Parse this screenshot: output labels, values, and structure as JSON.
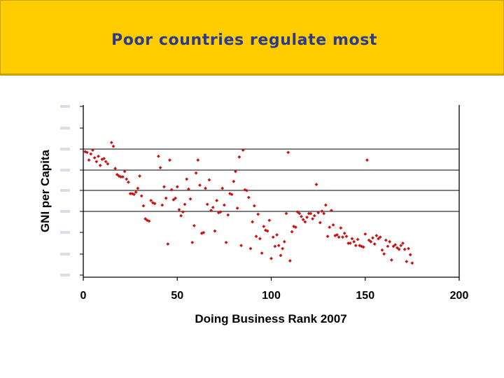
{
  "slide": {
    "title": "Poor countries regulate most"
  },
  "colors": {
    "header_bg": "#ffcc00",
    "title_text": "#2b3a8c",
    "points": "#cc1111"
  },
  "chart_data": {
    "type": "scatter",
    "title": "",
    "xlabel": "Doing Business Rank 2007",
    "ylabel": "GNI per Capita",
    "xlim": [
      0,
      200
    ],
    "x_ticks": [
      "0",
      "50",
      "100",
      "150",
      "200"
    ],
    "y_scale": "log",
    "y_ticks_legible": false,
    "grid": "horizontal lines at four y ticks",
    "legend": "none",
    "series": [
      {
        "points": [
          [
            1,
            52
          ],
          [
            2,
            53
          ],
          [
            3,
            63
          ],
          [
            4,
            55
          ],
          [
            5,
            50
          ],
          [
            6,
            60
          ],
          [
            7,
            65
          ],
          [
            8,
            58
          ],
          [
            9,
            70
          ],
          [
            10,
            62
          ],
          [
            11,
            61
          ],
          [
            12,
            65
          ],
          [
            13,
            68
          ],
          [
            15,
            40
          ],
          [
            16,
            45
          ],
          [
            17,
            74
          ],
          [
            18,
            82
          ],
          [
            19,
            84
          ],
          [
            20,
            85
          ],
          [
            21,
            85
          ],
          [
            22,
            78
          ],
          [
            23,
            88
          ],
          [
            24,
            92
          ],
          [
            25,
            107
          ],
          [
            26,
            107
          ],
          [
            27,
            108
          ],
          [
            28,
            105
          ],
          [
            29,
            100
          ],
          [
            30,
            84
          ],
          [
            31,
            110
          ],
          [
            32,
            123
          ],
          [
            33,
            140
          ],
          [
            34,
            142
          ],
          [
            35,
            143
          ],
          [
            36,
            116
          ],
          [
            37,
            119
          ],
          [
            38,
            120
          ],
          [
            40,
            58
          ],
          [
            41,
            73
          ],
          [
            42,
            122
          ],
          [
            43,
            98
          ],
          [
            44,
            113
          ],
          [
            45,
            173
          ],
          [
            46,
            63
          ],
          [
            47,
            102
          ],
          [
            48,
            115
          ],
          [
            49,
            113
          ],
          [
            50,
            98
          ],
          [
            51,
            128
          ],
          [
            52,
            136
          ],
          [
            53,
            131
          ],
          [
            54,
            121
          ],
          [
            55,
            88
          ],
          [
            56,
            101
          ],
          [
            57,
            114
          ],
          [
            58,
            171
          ],
          [
            59,
            149
          ],
          [
            60,
            80
          ],
          [
            61,
            63
          ],
          [
            62,
            96
          ],
          [
            63,
            159
          ],
          [
            64,
            158
          ],
          [
            65,
            100
          ],
          [
            66,
            121
          ],
          [
            67,
            89
          ],
          [
            68,
            129
          ],
          [
            69,
            125
          ],
          [
            70,
            156
          ],
          [
            71,
            116
          ],
          [
            72,
            132
          ],
          [
            73,
            131
          ],
          [
            74,
            100
          ],
          [
            75,
            122
          ],
          [
            76,
            171
          ],
          [
            77,
            135
          ],
          [
            78,
            107
          ],
          [
            79,
            108
          ],
          [
            80,
            91
          ],
          [
            81,
            78
          ],
          [
            82,
            126
          ],
          [
            83,
            59
          ],
          [
            84,
            175
          ],
          [
            85,
            50
          ],
          [
            86,
            102
          ],
          [
            87,
            103
          ],
          [
            88,
            112
          ],
          [
            89,
            179
          ],
          [
            90,
            144
          ],
          [
            91,
            123
          ],
          [
            92,
            163
          ],
          [
            93,
            134
          ],
          [
            94,
            166
          ],
          [
            95,
            185
          ],
          [
            96,
            150
          ],
          [
            97,
            155
          ],
          [
            98,
            156
          ],
          [
            99,
            142
          ],
          [
            100,
            192
          ],
          [
            101,
            164
          ],
          [
            102,
            176
          ],
          [
            103,
            161
          ],
          [
            104,
            175
          ],
          [
            105,
            188
          ],
          [
            106,
            179
          ],
          [
            107,
            170
          ],
          [
            108,
            133
          ],
          [
            109,
            53
          ],
          [
            110,
            195
          ],
          [
            111,
            157
          ],
          [
            112,
            150
          ],
          [
            113,
            151
          ],
          [
            114,
            131
          ],
          [
            115,
            133
          ],
          [
            116,
            137
          ],
          [
            117,
            141
          ],
          [
            118,
            144
          ],
          [
            119,
            138
          ],
          [
            120,
            133
          ],
          [
            121,
            133
          ],
          [
            122,
            140
          ],
          [
            123,
            136
          ],
          [
            124,
            95
          ],
          [
            125,
            132
          ],
          [
            126,
            145
          ],
          [
            127,
            130
          ],
          [
            128,
            133
          ],
          [
            129,
            122
          ],
          [
            130,
            163
          ],
          [
            131,
            151
          ],
          [
            132,
            129
          ],
          [
            133,
            148
          ],
          [
            134,
            162
          ],
          [
            135,
            161
          ],
          [
            136,
            164
          ],
          [
            137,
            152
          ],
          [
            138,
            164
          ],
          [
            139,
            159
          ],
          [
            140,
            163
          ],
          [
            141,
            172
          ],
          [
            142,
            172
          ],
          [
            143,
            166
          ],
          [
            144,
            170
          ],
          [
            145,
            175
          ],
          [
            146,
            167
          ],
          [
            147,
            175
          ],
          [
            148,
            176
          ],
          [
            149,
            177
          ],
          [
            150,
            160
          ],
          [
            151,
            63
          ],
          [
            152,
            168
          ],
          [
            153,
            170
          ],
          [
            154,
            165
          ],
          [
            155,
            173
          ],
          [
            156,
            162
          ],
          [
            157,
            166
          ],
          [
            158,
            164
          ],
          [
            159,
            181
          ],
          [
            160,
            186
          ],
          [
            161,
            168
          ],
          [
            162,
            176
          ],
          [
            163,
            170
          ],
          [
            164,
            194
          ],
          [
            165,
            176
          ],
          [
            166,
            174
          ],
          [
            167,
            178
          ],
          [
            168,
            180
          ],
          [
            169,
            175
          ],
          [
            170,
            172
          ],
          [
            171,
            180
          ],
          [
            172,
            196
          ],
          [
            173,
            179
          ],
          [
            174,
            187
          ],
          [
            175,
            198
          ]
        ]
      }
    ]
  }
}
